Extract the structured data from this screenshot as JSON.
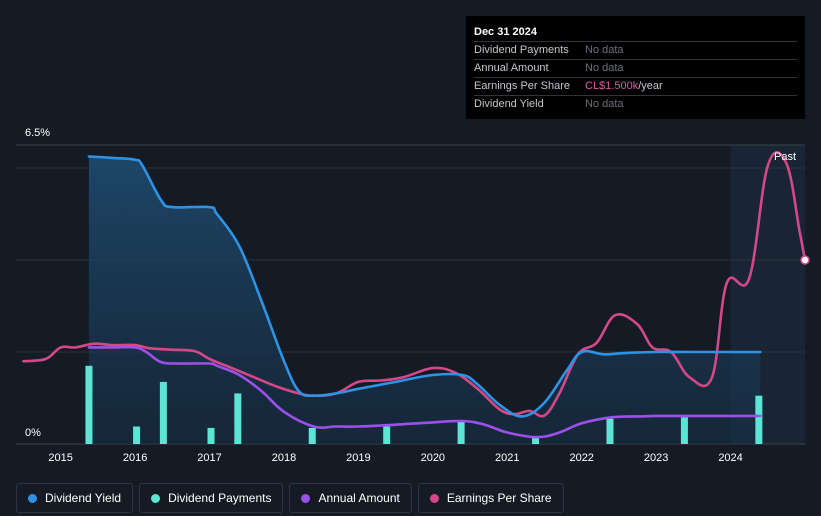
{
  "tooltip": {
    "date": "Dec 31 2024",
    "rows": [
      {
        "label": "Dividend Payments",
        "value": "No data"
      },
      {
        "label": "Annual Amount",
        "value": "No data"
      },
      {
        "label": "Earnings Per Share",
        "value": "CL$1.500k",
        "unit": "/year"
      },
      {
        "label": "Dividend Yield",
        "value": "No data"
      }
    ]
  },
  "legend": [
    {
      "label": "Dividend Yield",
      "color": "#2e93e5"
    },
    {
      "label": "Dividend Payments",
      "color": "#5ce5d5"
    },
    {
      "label": "Annual Amount",
      "color": "#9c50e8"
    },
    {
      "label": "Earnings Per Share",
      "color": "#d4488a"
    }
  ],
  "chart_data": {
    "type": "line",
    "title": "",
    "y_max_label": "6.5%",
    "y_min_label": "0%",
    "past_label": "Past",
    "ylim": [
      0,
      6.5
    ],
    "xlim": [
      2014.4,
      2025.0
    ],
    "x_ticks": [
      "2015",
      "2016",
      "2017",
      "2018",
      "2019",
      "2020",
      "2021",
      "2022",
      "2023",
      "2024"
    ],
    "x_tick_values": [
      2015,
      2016,
      2017,
      2018,
      2019,
      2020,
      2021,
      2022,
      2023,
      2024
    ],
    "past_region_start": 2024.0,
    "series": [
      {
        "name": "Dividend Yield",
        "color": "#2e93e5",
        "area": true,
        "x": [
          2015.38,
          2015.7,
          2016.0,
          2016.1,
          2016.35,
          2016.5,
          2017.0,
          2017.1,
          2017.4,
          2017.7,
          2018.0,
          2018.2,
          2018.4,
          2018.7,
          2019.0,
          2019.5,
          2020.0,
          2020.4,
          2020.6,
          2020.9,
          2021.2,
          2021.5,
          2021.8,
          2022.0,
          2022.3,
          2022.6,
          2023.0,
          2023.5,
          2024.0,
          2024.4
        ],
        "y": [
          6.25,
          6.22,
          6.18,
          6.05,
          5.3,
          5.15,
          5.15,
          5.0,
          4.3,
          3.1,
          1.8,
          1.15,
          1.05,
          1.1,
          1.2,
          1.35,
          1.5,
          1.5,
          1.3,
          0.85,
          0.6,
          0.9,
          1.6,
          2.0,
          1.95,
          1.98,
          2.0,
          2.0,
          2.0,
          2.0
        ]
      },
      {
        "name": "Annual Amount",
        "color": "#9c50e8",
        "area": false,
        "x": [
          2015.38,
          2015.7,
          2016.0,
          2016.15,
          2016.35,
          2016.6,
          2017.0,
          2017.1,
          2017.4,
          2017.7,
          2018.0,
          2018.4,
          2018.7,
          2019.0,
          2019.5,
          2020.0,
          2020.4,
          2020.7,
          2021.0,
          2021.4,
          2021.7,
          2022.0,
          2022.4,
          2022.8,
          2023.0,
          2023.5,
          2024.0,
          2024.4
        ],
        "y": [
          2.1,
          2.1,
          2.1,
          2.0,
          1.78,
          1.75,
          1.75,
          1.7,
          1.5,
          1.15,
          0.7,
          0.38,
          0.38,
          0.38,
          0.42,
          0.47,
          0.5,
          0.42,
          0.25,
          0.15,
          0.25,
          0.45,
          0.58,
          0.6,
          0.61,
          0.61,
          0.61,
          0.61
        ]
      },
      {
        "name": "Earnings Per Share",
        "color": "#d4488a",
        "area": false,
        "x": [
          2014.5,
          2014.8,
          2015.0,
          2015.2,
          2015.45,
          2015.7,
          2016.0,
          2016.2,
          2016.5,
          2016.8,
          2017.0,
          2017.3,
          2017.6,
          2017.9,
          2018.2,
          2018.4,
          2018.7,
          2019.0,
          2019.3,
          2019.6,
          2020.0,
          2020.3,
          2020.6,
          2020.9,
          2021.1,
          2021.3,
          2021.5,
          2021.7,
          2021.95,
          2022.2,
          2022.45,
          2022.75,
          2022.95,
          2023.2,
          2023.45,
          2023.75,
          2023.95,
          2024.25,
          2024.5,
          2024.75,
          2024.93,
          2025.0
        ],
        "y": [
          1.8,
          1.85,
          2.1,
          2.1,
          2.18,
          2.15,
          2.15,
          2.08,
          2.05,
          2.02,
          1.85,
          1.65,
          1.45,
          1.25,
          1.1,
          1.05,
          1.1,
          1.35,
          1.38,
          1.45,
          1.65,
          1.55,
          1.2,
          0.75,
          0.65,
          0.72,
          0.62,
          1.1,
          1.95,
          2.2,
          2.8,
          2.6,
          2.1,
          2.0,
          1.45,
          1.45,
          3.5,
          3.6,
          6.05,
          6.1,
          4.6,
          4.0
        ]
      }
    ],
    "bars": {
      "name": "Dividend Payments",
      "color": "#5ce5d5",
      "x": [
        2015.38,
        2016.02,
        2016.38,
        2017.02,
        2017.38,
        2018.38,
        2019.38,
        2020.38,
        2021.38,
        2022.38,
        2023.38,
        2024.38
      ],
      "y": [
        1.7,
        0.38,
        1.35,
        0.35,
        1.1,
        0.35,
        0.38,
        0.5,
        0.15,
        0.55,
        0.58,
        1.05
      ]
    }
  }
}
